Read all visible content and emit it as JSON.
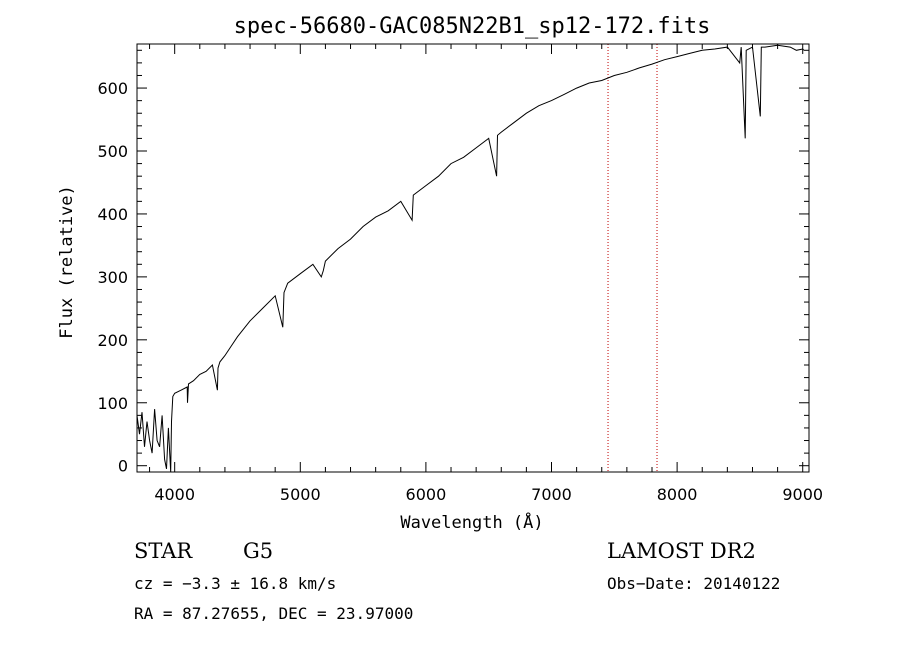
{
  "chart_data": {
    "type": "line",
    "title": "spec-56680-GAC085N22B1_sp12-172.fits",
    "xlabel": "Wavelength (Å)",
    "ylabel": "Flux (relative)",
    "xlim": [
      3700,
      9050
    ],
    "ylim": [
      -10,
      670
    ],
    "xticks": [
      4000,
      5000,
      6000,
      7000,
      8000,
      9000
    ],
    "yticks": [
      0,
      100,
      200,
      300,
      400,
      500,
      600
    ],
    "grid": false,
    "reference_lines_x": [
      7450,
      7840
    ],
    "series": [
      {
        "x": [
          3700,
          3720,
          3740,
          3760,
          3780,
          3800,
          3820,
          3840,
          3860,
          3880,
          3900,
          3920,
          3935,
          3950,
          3960,
          3968,
          3975,
          3985,
          4000,
          4050,
          4100,
          4102,
          4110,
          4150,
          4200,
          4250,
          4300,
          4340,
          4345,
          4360,
          4400,
          4450,
          4500,
          4600,
          4700,
          4800,
          4861,
          4870,
          4900,
          5000,
          5100,
          5167,
          5183,
          5200,
          5300,
          5400,
          5500,
          5600,
          5700,
          5800,
          5890,
          5900,
          6000,
          6100,
          6200,
          6300,
          6400,
          6500,
          6563,
          6570,
          6600,
          6700,
          6800,
          6900,
          7000,
          7100,
          7200,
          7300,
          7400,
          7500,
          7600,
          7700,
          7800,
          7900,
          8000,
          8100,
          8200,
          8300,
          8400,
          8498,
          8510,
          8542,
          8550,
          8600,
          8662,
          8670,
          8700,
          8800,
          8900,
          8950,
          9000,
          9010
        ],
        "y": [
          80,
          50,
          85,
          30,
          70,
          40,
          20,
          90,
          40,
          30,
          80,
          10,
          -5,
          60,
          20,
          -10,
          70,
          110,
          115,
          120,
          125,
          100,
          130,
          135,
          145,
          150,
          160,
          120,
          155,
          165,
          175,
          190,
          205,
          230,
          250,
          270,
          220,
          275,
          290,
          305,
          320,
          300,
          310,
          325,
          345,
          360,
          380,
          395,
          405,
          420,
          390,
          430,
          445,
          460,
          480,
          490,
          505,
          520,
          460,
          525,
          530,
          545,
          560,
          572,
          580,
          590,
          600,
          608,
          612,
          620,
          625,
          632,
          638,
          645,
          650,
          655,
          660,
          662,
          665,
          640,
          665,
          520,
          660,
          665,
          555,
          665,
          665,
          668,
          665,
          660,
          662,
          660
        ]
      }
    ]
  },
  "info": {
    "class": "STAR",
    "subclass": "G5",
    "survey": "LAMOST DR2",
    "cz": "cz = −3.3 ± 16.8 km/s",
    "obs_date": "Obs−Date: 20140122",
    "coords": "RA =  87.27655, DEC =  23.97000"
  }
}
